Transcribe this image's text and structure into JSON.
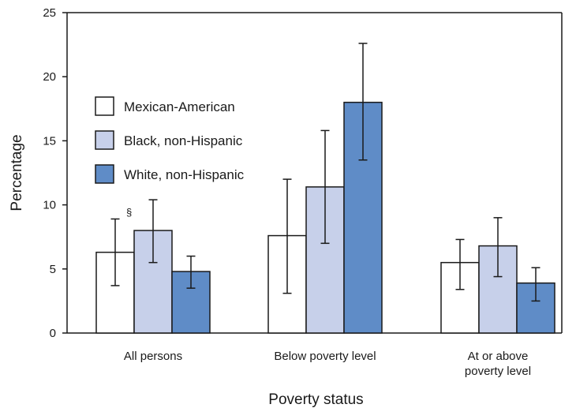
{
  "chart_data": {
    "type": "bar",
    "xlabel": "Poverty status",
    "ylabel": "Percentage",
    "ylim": [
      0,
      25
    ],
    "yticks": [
      "0",
      "5",
      "10",
      "15",
      "20",
      "25"
    ],
    "categories": [
      {
        "lines": [
          "All persons"
        ]
      },
      {
        "lines": [
          "Below poverty level"
        ]
      },
      {
        "lines": [
          "At or above",
          "poverty level"
        ]
      }
    ],
    "series": [
      {
        "name": "Mexican-American",
        "color": "#ffffff",
        "values": [
          6.3,
          7.6,
          5.5
        ],
        "ci_low": [
          3.7,
          3.1,
          3.4
        ],
        "ci_high": [
          8.9,
          12.0,
          7.3
        ]
      },
      {
        "name": "Black, non-Hispanic",
        "color": "#c7d0ea",
        "values": [
          8.0,
          11.4,
          6.8
        ],
        "ci_low": [
          5.5,
          7.0,
          4.4
        ],
        "ci_high": [
          10.4,
          15.8,
          9.0
        ]
      },
      {
        "name": "White, non-Hispanic",
        "color": "#5f8cc7",
        "values": [
          4.8,
          18.0,
          3.9
        ],
        "ci_low": [
          3.5,
          13.5,
          2.5
        ],
        "ci_high": [
          6.0,
          22.6,
          5.1
        ]
      }
    ],
    "annotations": [
      {
        "text": "§",
        "series": 0,
        "category": 0
      }
    ],
    "legend_position": "upper-left",
    "grid": false
  }
}
